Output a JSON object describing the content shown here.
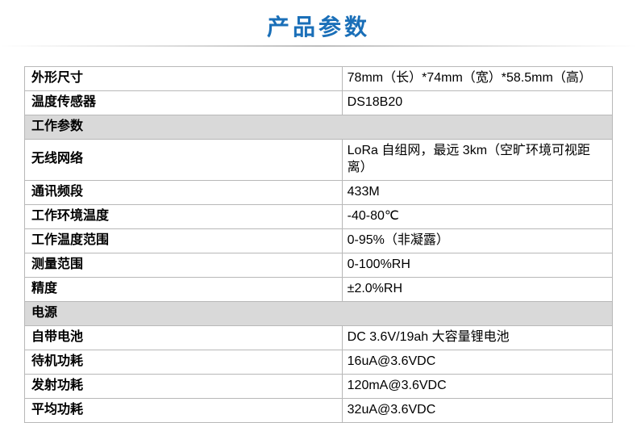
{
  "title": "产品参数",
  "title_color": "#1a6fb8",
  "title_fontsize": 28,
  "underline_color": "#bebebe",
  "border_color": "#b8b8b8",
  "section_bg": "#d9d9d9",
  "label_fontsize": 16,
  "value_fontsize": 16,
  "label_font_weight": "bold",
  "col_widths": [
    "54%",
    "46%"
  ],
  "rows": [
    {
      "type": "kv",
      "label": "外形尺寸",
      "value": "78mm（长）*74mm（宽）*58.5mm（高）"
    },
    {
      "type": "kv",
      "label": "温度传感器",
      "value": "DS18B20"
    },
    {
      "type": "section",
      "label": "工作参数"
    },
    {
      "type": "kv",
      "label": "无线网络",
      "value": "LoRa 自组网，最远 3km（空旷环境可视距离）"
    },
    {
      "type": "kv",
      "label": "通讯频段",
      "value": "433M"
    },
    {
      "type": "kv",
      "label": "工作环境温度",
      "value": "-40-80℃"
    },
    {
      "type": "kv",
      "label": "工作温度范围",
      "value": "0-95%（非凝露）"
    },
    {
      "type": "kv",
      "label": "测量范围",
      "value": "0-100%RH"
    },
    {
      "type": "kv",
      "label": "精度",
      "value": "±2.0%RH"
    },
    {
      "type": "section",
      "label": "电源"
    },
    {
      "type": "kv",
      "label": "自带电池",
      "value": "DC 3.6V/19ah 大容量锂电池"
    },
    {
      "type": "kv",
      "label": "待机功耗",
      "value": "16uA@3.6VDC"
    },
    {
      "type": "kv",
      "label": "发射功耗",
      "value": "120mA@3.6VDC"
    },
    {
      "type": "kv",
      "label": "平均功耗",
      "value": "32uA@3.6VDC"
    }
  ]
}
